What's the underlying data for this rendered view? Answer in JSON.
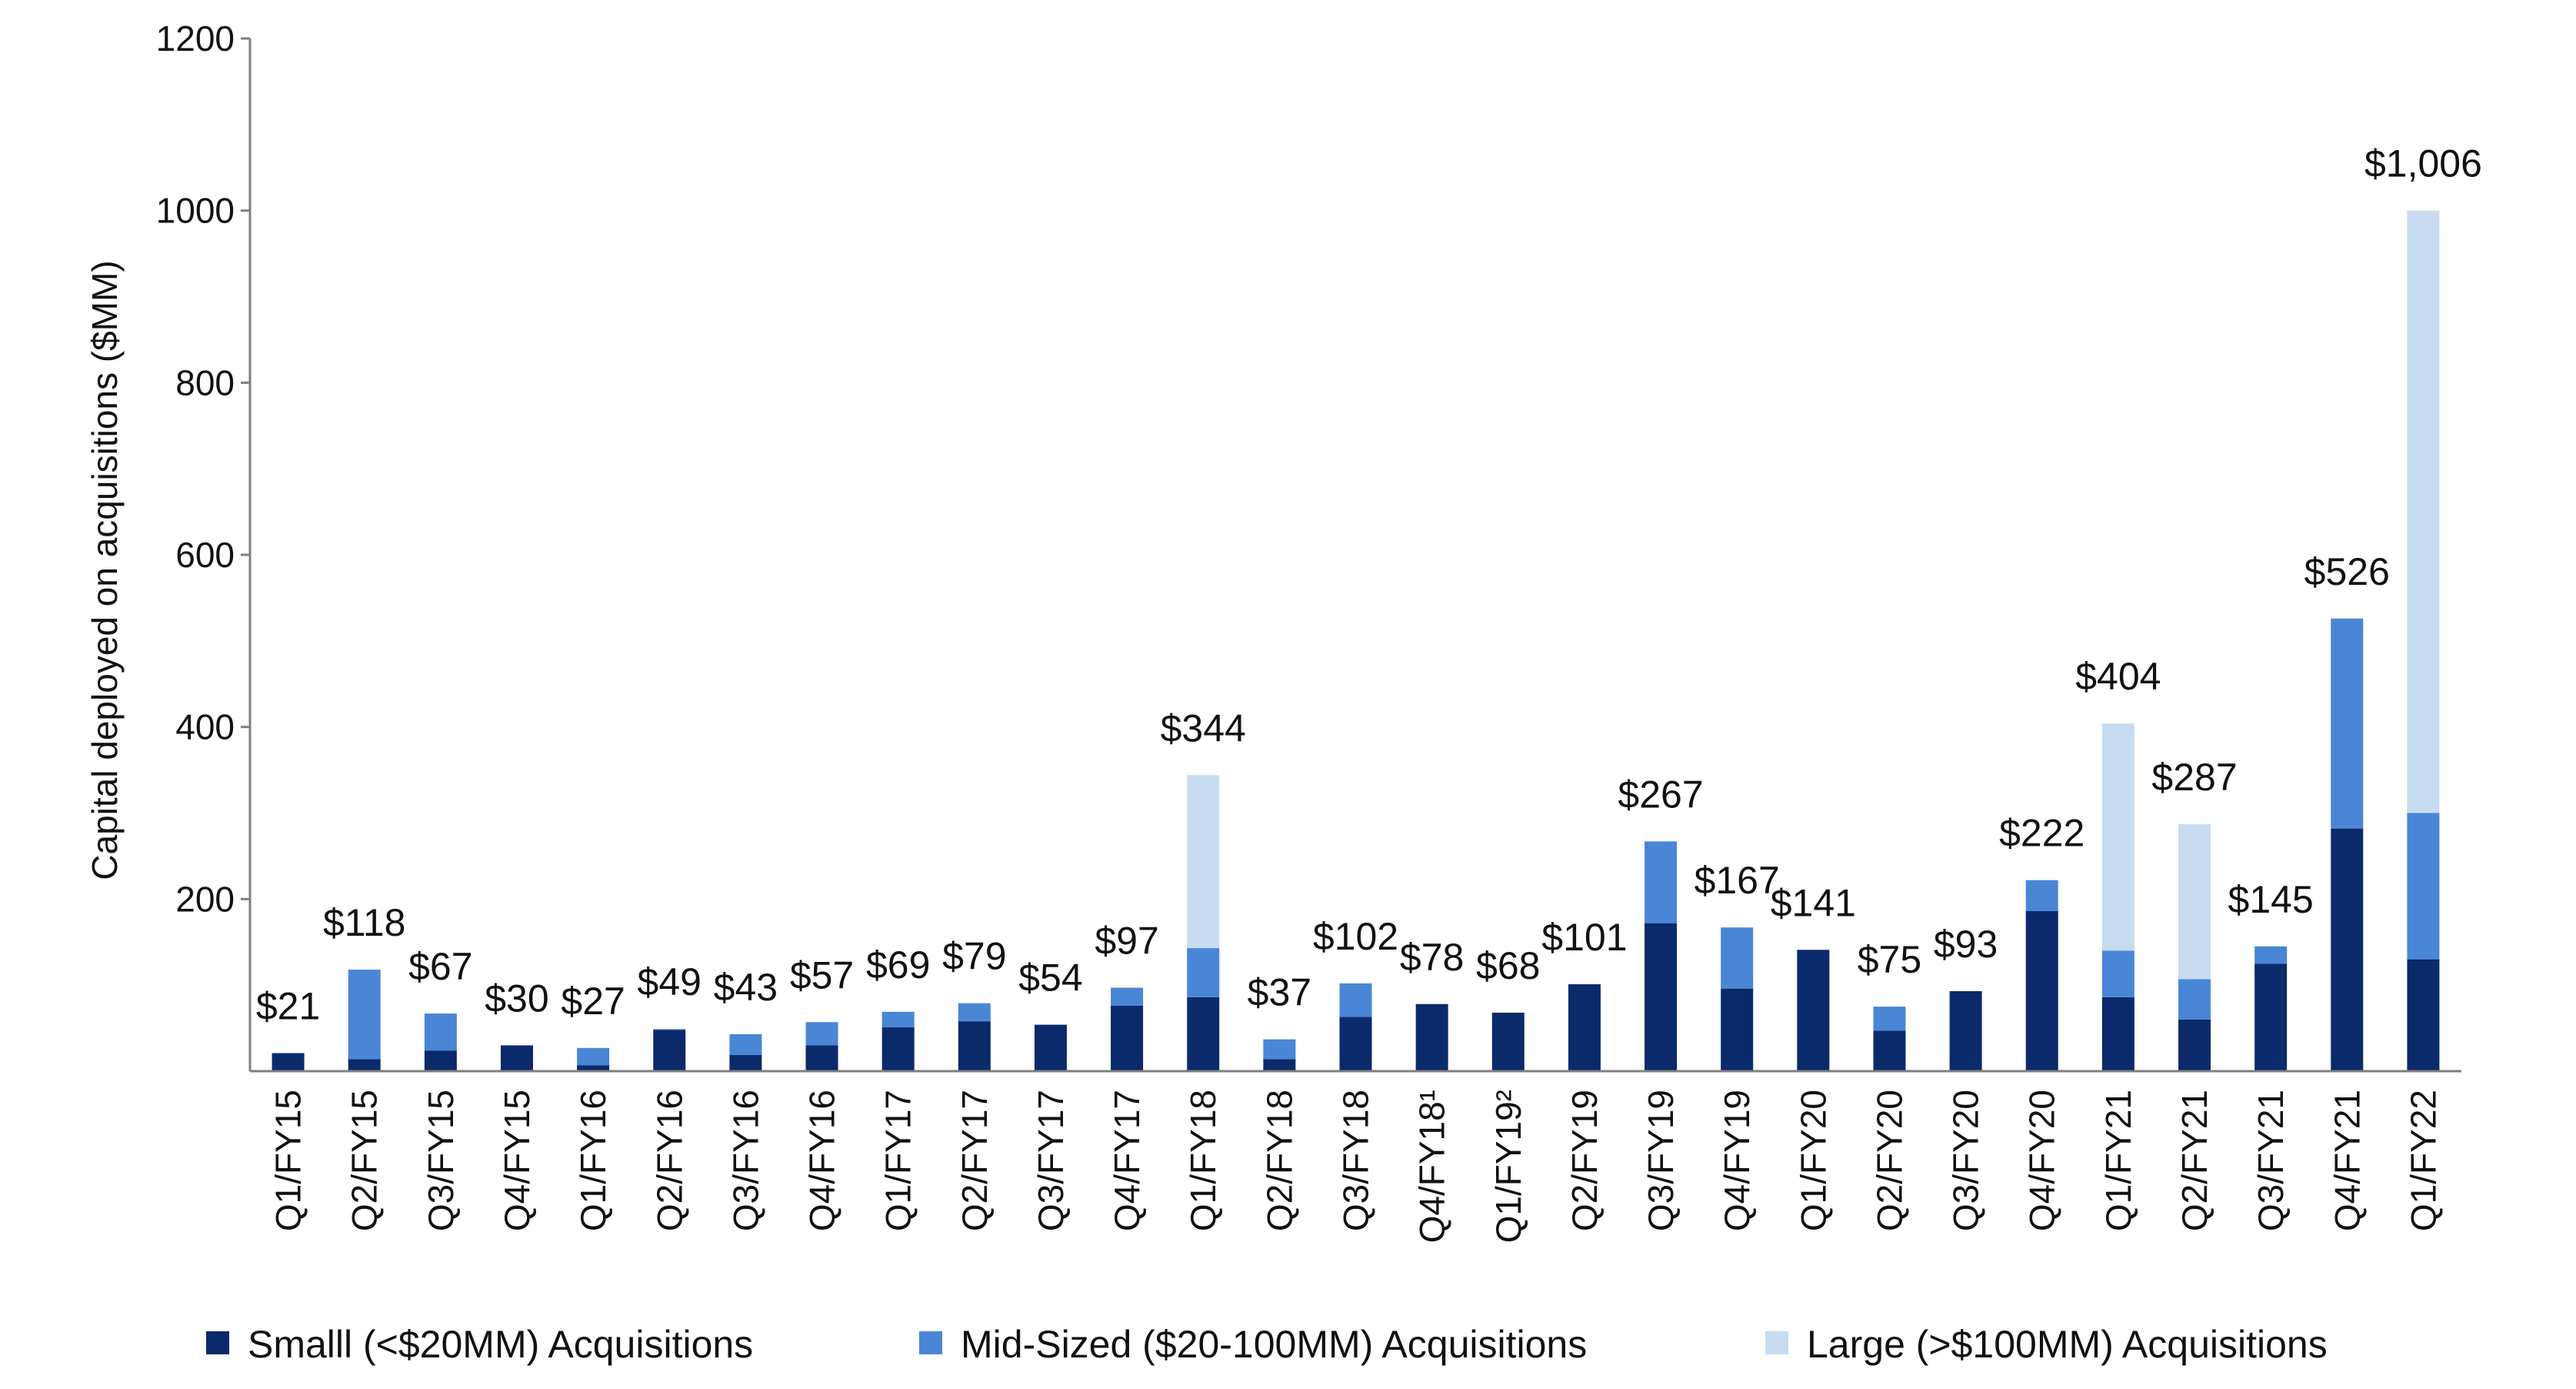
{
  "chart_data": {
    "type": "bar",
    "stacked": true,
    "ylabel": "Capital deployed on acquisitions ($MM)",
    "ylim": [
      0,
      1200
    ],
    "yticks": [
      200,
      400,
      600,
      800,
      1000,
      1200
    ],
    "grid": false,
    "legend_position": "bottom",
    "categories": [
      "Q1/FY15",
      "Q2/FY15",
      "Q3/FY15",
      "Q4/FY15",
      "Q1/FY16",
      "Q2/FY16",
      "Q3/FY16",
      "Q4/FY16",
      "Q1/FY17",
      "Q2/FY17",
      "Q3/FY17",
      "Q4/FY17",
      "Q1/FY18",
      "Q2/FY18",
      "Q3/FY18",
      "Q4/FY18¹",
      "Q1/FY19²",
      "Q2/FY19",
      "Q3/FY19",
      "Q4/FY19",
      "Q1/FY20",
      "Q2/FY20",
      "Q3/FY20",
      "Q4/FY20",
      "Q1/FY21",
      "Q2/FY21",
      "Q3/FY21",
      "Q4/FY21",
      "Q1/FY22"
    ],
    "series": [
      {
        "name": "Smalll (<$20MM) Acquisitions",
        "color": "#0a2a6b",
        "values": [
          21,
          14,
          24,
          30,
          7,
          48,
          19,
          30,
          51,
          58,
          54,
          76,
          86,
          14,
          63,
          78,
          68,
          101,
          172,
          96,
          141,
          47,
          93,
          186,
          86,
          60,
          125,
          282,
          130
        ]
      },
      {
        "name": "Mid-Sized ($20-100MM) Acquisitions",
        "color": "#4a86d6",
        "values": [
          0,
          104,
          43,
          0,
          20,
          1,
          24,
          27,
          18,
          21,
          0,
          21,
          57,
          23,
          39,
          0,
          0,
          0,
          95,
          71,
          0,
          28,
          0,
          36,
          54,
          47,
          20,
          244,
          170
        ]
      },
      {
        "name": "Large (>$100MM) Acquisitions",
        "color": "#c7dcf1",
        "values": [
          0,
          0,
          0,
          0,
          0,
          0,
          0,
          0,
          0,
          0,
          0,
          0,
          201,
          0,
          0,
          0,
          0,
          0,
          0,
          0,
          0,
          0,
          0,
          0,
          264,
          180,
          0,
          0,
          700
        ]
      }
    ],
    "totals": [
      "$21",
      "$118",
      "$67",
      "$30",
      "$27",
      "$49",
      "$43",
      "$57",
      "$69",
      "$79",
      "$54",
      "$97",
      "$344",
      "$37",
      "$102",
      "$78",
      "$68",
      "$101",
      "$267",
      "$167",
      "$141",
      "$75",
      "$93",
      "$222",
      "$404",
      "$287",
      "$145",
      "$526",
      "$1,006"
    ]
  }
}
